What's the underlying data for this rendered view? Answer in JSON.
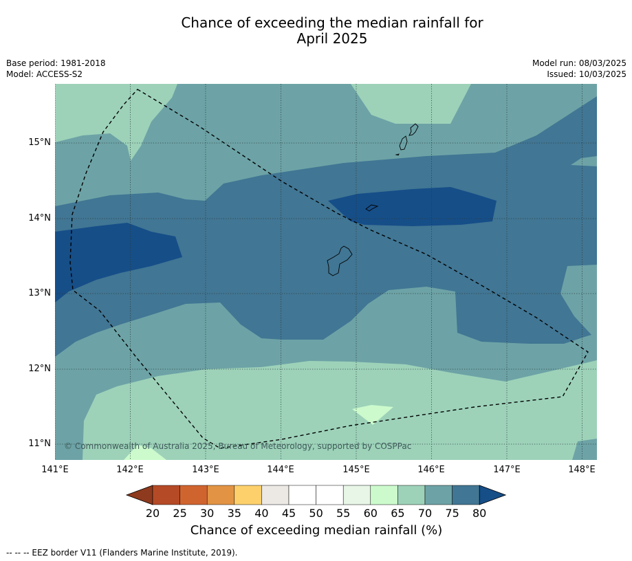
{
  "title": {
    "line1": "Chance of exceeding the median rainfall for",
    "line2": "April 2025"
  },
  "meta": {
    "base_period": "Base period: 1981-2018",
    "model": "Model: ACCESS-S2",
    "model_run": "Model run: 08/03/2025",
    "issued": "Issued: 10/03/2025"
  },
  "map": {
    "x_ticks": [
      "141°E",
      "142°E",
      "143°E",
      "144°E",
      "145°E",
      "146°E",
      "147°E",
      "148°E"
    ],
    "y_ticks": [
      "15°N",
      "14°N",
      "13°N",
      "12°N",
      "11°N"
    ],
    "copyright": "© Commonwealth of Australia 2025, Bureau of Meteorology, supported by COSPPac"
  },
  "colorbar": {
    "ticks": [
      "20",
      "25",
      "30",
      "35",
      "40",
      "45",
      "50",
      "55",
      "60",
      "65",
      "70",
      "75",
      "80"
    ],
    "colors": [
      "#8e3a1e",
      "#b54a26",
      "#d0642f",
      "#e29444",
      "#fdd06c",
      "#ece8e4",
      "#ffffff",
      "#ffffff",
      "#e8f6e8",
      "#ccfacc",
      "#9dd2b9",
      "#6da3a6",
      "#417694",
      "#164e88"
    ],
    "label": "Chance of exceeding median rainfall (%)"
  },
  "legend": {
    "eez": "-- -- -- EEZ border V11 (Flanders Marine Institute, 2019)."
  }
}
